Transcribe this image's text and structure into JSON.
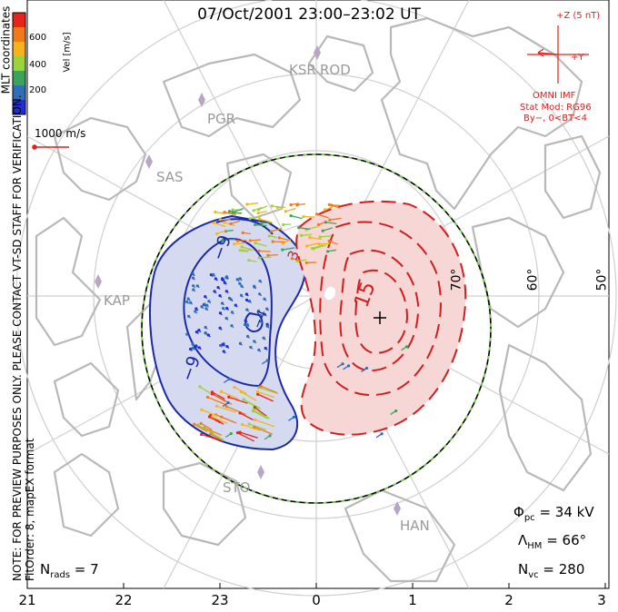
{
  "title": "07/Oct/2001 23:00–23:02 UT",
  "color_scale": {
    "label": "Vel [m/s]",
    "ticks": [
      "600",
      "400",
      "200"
    ],
    "colors": [
      "#e8231c",
      "#f07a1a",
      "#f6b31d",
      "#9ad33a",
      "#3aa55a",
      "#2f6fb8",
      "#1f2fd8"
    ]
  },
  "vertical_note": {
    "line1": "NOTE: FOR PREVIEW PURPOSES ONLY. PLEASE CONTACT VT-SD STAFF FOR VERIFICATION.",
    "line2": "FitOrder: 8, mapEX format"
  },
  "mlt_label": "MLT coordinates",
  "velocity_ref": "1000 m/s",
  "imf": {
    "z_label": "+Z (5 nT)",
    "y_label": "+Y",
    "source": "OMNI IMF",
    "model": "Stat Mod: RG96",
    "conditions": "By−, 0<BT<4"
  },
  "stations": [
    "KSR",
    "ROD",
    "PGR",
    "SAS",
    "KAP",
    "STO",
    "HAN"
  ],
  "latitude_labels": [
    "70°",
    "60°",
    "50°"
  ],
  "contour_labels": [
    "−9",
    "−9",
    "−4",
    "15",
    "3"
  ],
  "stats": {
    "phi_pc": "34 kV",
    "lambda_hm": "66°",
    "n_vc": "280",
    "n_rads": "7"
  },
  "mlt_axis": [
    "21",
    "22",
    "23",
    "0",
    "1",
    "2",
    "3"
  ],
  "colors": {
    "contour_negative": "#1a2aa8",
    "contour_positive": "#d01e1e",
    "fill_negative": "#d6daf0",
    "fill_positive": "#f7d6d6",
    "coastline": "#b8b8b8",
    "grid": "#c8c8c8",
    "boundary_dash": "#6fd63c"
  }
}
